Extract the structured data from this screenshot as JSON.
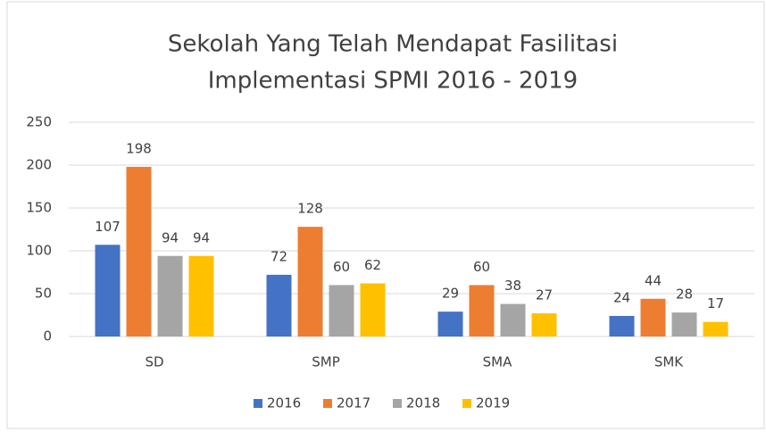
{
  "chart_data": {
    "type": "bar",
    "title": [
      "Sekolah Yang Telah Mendapat Fasilitasi",
      "Implementasi SPMI 2016 - 2019"
    ],
    "categories": [
      "SD",
      "SMP",
      "SMA",
      "SMK"
    ],
    "series": [
      {
        "name": "2016",
        "color": "#4472c4",
        "values": [
          107,
          72,
          29,
          24
        ]
      },
      {
        "name": "2017",
        "color": "#ed7d31",
        "values": [
          198,
          128,
          60,
          44
        ]
      },
      {
        "name": "2018",
        "color": "#a5a5a5",
        "values": [
          94,
          60,
          38,
          28
        ]
      },
      {
        "name": "2019",
        "color": "#ffc000",
        "values": [
          94,
          62,
          27,
          17
        ]
      }
    ],
    "ylim": [
      0,
      250
    ],
    "yticks": [
      0,
      50,
      100,
      150,
      200,
      250
    ],
    "grid": true,
    "legend": "bottom"
  }
}
